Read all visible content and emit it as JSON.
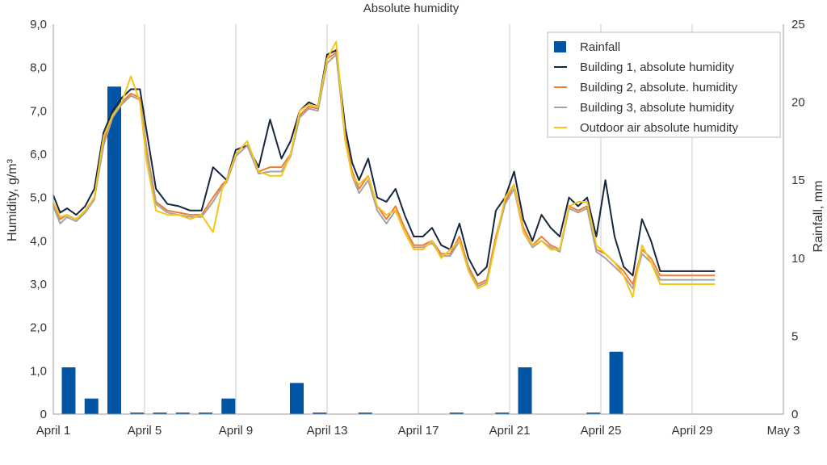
{
  "chart_data": {
    "type": "bar+line",
    "title": "Absolute humidity",
    "ylabel_left": "Humidity, g/m³",
    "ylabel_right": "Rainfall, mm",
    "ylim_left": [
      0,
      9
    ],
    "ylim_right": [
      0,
      25
    ],
    "xlim_days": [
      1,
      33
    ],
    "y_ticks_left": [
      "0",
      "1,0",
      "2,0",
      "3,0",
      "4,0",
      "5,0",
      "6,0",
      "7,0",
      "8,0",
      "9,0"
    ],
    "y_ticks_right": [
      "0",
      "5",
      "10",
      "15",
      "20",
      "25"
    ],
    "x_ticks": [
      {
        "day": 1,
        "label": "April 1"
      },
      {
        "day": 5,
        "label": "April 5"
      },
      {
        "day": 9,
        "label": "April 9"
      },
      {
        "day": 13,
        "label": "April 13"
      },
      {
        "day": 17,
        "label": "April 17"
      },
      {
        "day": 21,
        "label": "April 21"
      },
      {
        "day": 25,
        "label": "April 25"
      },
      {
        "day": 29,
        "label": "April 29"
      },
      {
        "day": 33,
        "label": "May 3"
      }
    ],
    "grid_vertical": true,
    "legend_position": "top-right",
    "rainfall": {
      "name": "Rainfall",
      "color": "#0055a5",
      "days": [
        1,
        2,
        3,
        4,
        5,
        6,
        7,
        8,
        9,
        10,
        11,
        12,
        13,
        14,
        15,
        16,
        17,
        18,
        19,
        20,
        21,
        22,
        23,
        24,
        25
      ],
      "values": [
        3.0,
        1.0,
        21.0,
        0.1,
        0.1,
        0.1,
        0.1,
        1.0,
        0,
        0,
        2.0,
        0.1,
        0,
        0.1,
        0,
        0,
        0,
        0.1,
        0,
        0.1,
        3.0,
        0,
        0,
        0.1,
        4.0
      ]
    },
    "series": [
      {
        "name": "Building 1, absolute humidity",
        "color": "#15263f",
        "days": [
          1.0,
          1.3,
          1.6,
          2.0,
          2.4,
          2.8,
          3.2,
          3.6,
          4.0,
          4.4,
          4.8,
          5.1,
          5.5,
          6.0,
          6.5,
          7.0,
          7.5,
          8.0,
          8.4,
          8.6,
          9.0,
          9.5,
          10.0,
          10.5,
          11.0,
          11.4,
          11.8,
          12.2,
          12.6,
          13.0,
          13.4,
          13.8,
          14.1,
          14.4,
          14.8,
          15.2,
          15.6,
          16.0,
          16.4,
          16.8,
          17.2,
          17.6,
          18.0,
          18.4,
          18.8,
          19.2,
          19.6,
          20.0,
          20.4,
          20.8,
          21.2,
          21.6,
          22.0,
          22.4,
          22.8,
          23.2,
          23.6,
          24.0,
          24.4,
          24.8,
          25.2,
          25.6,
          26.0,
          26.4,
          26.8,
          27.2,
          27.6,
          28.0,
          28.4,
          28.8,
          29.2,
          29.6,
          30.0
        ],
        "values": [
          5.05,
          4.65,
          4.75,
          4.6,
          4.8,
          5.2,
          6.5,
          7.0,
          7.3,
          7.5,
          7.5,
          6.5,
          5.2,
          4.85,
          4.8,
          4.7,
          4.7,
          5.7,
          5.5,
          5.4,
          6.1,
          6.2,
          5.7,
          6.8,
          5.9,
          6.3,
          7.0,
          7.2,
          7.1,
          8.3,
          8.4,
          6.6,
          5.8,
          5.4,
          5.9,
          5.0,
          4.9,
          5.2,
          4.6,
          4.1,
          4.1,
          4.3,
          3.9,
          3.8,
          4.4,
          3.6,
          3.2,
          3.4,
          4.7,
          5.0,
          5.6,
          4.5,
          4.0,
          4.6,
          4.3,
          4.1,
          5.0,
          4.8,
          5.0,
          4.1,
          5.4,
          4.1,
          3.4,
          3.2,
          4.5,
          4.0,
          3.3,
          3.3,
          3.3,
          3.3,
          3.3,
          3.3,
          3.3
        ]
      },
      {
        "name": "Building 2, absolute. humidity",
        "color": "#ef7d32",
        "days": [
          1.0,
          1.3,
          1.6,
          2.0,
          2.4,
          2.8,
          3.2,
          3.6,
          4.0,
          4.4,
          4.8,
          5.1,
          5.5,
          6.0,
          6.5,
          7.0,
          7.5,
          8.0,
          8.4,
          8.6,
          9.0,
          9.5,
          10.0,
          10.5,
          11.0,
          11.4,
          11.8,
          12.2,
          12.6,
          13.0,
          13.4,
          13.8,
          14.1,
          14.4,
          14.8,
          15.2,
          15.6,
          16.0,
          16.4,
          16.8,
          17.2,
          17.6,
          18.0,
          18.4,
          18.8,
          19.2,
          19.6,
          20.0,
          20.4,
          20.8,
          21.2,
          21.6,
          22.0,
          22.4,
          22.8,
          23.2,
          23.6,
          24.0,
          24.4,
          24.8,
          25.2,
          25.6,
          26.0,
          26.4,
          26.8,
          27.2,
          27.6,
          28.0,
          28.4,
          28.8,
          29.2,
          29.6,
          30.0
        ],
        "values": [
          4.85,
          4.5,
          4.6,
          4.5,
          4.7,
          5.0,
          6.3,
          6.9,
          7.2,
          7.4,
          7.3,
          6.1,
          4.9,
          4.7,
          4.65,
          4.6,
          4.6,
          5.0,
          5.3,
          5.4,
          6.0,
          6.3,
          5.6,
          5.7,
          5.7,
          6.0,
          6.9,
          7.1,
          7.05,
          8.2,
          8.35,
          6.4,
          5.6,
          5.2,
          5.5,
          4.8,
          4.5,
          4.8,
          4.3,
          3.9,
          3.9,
          4.0,
          3.7,
          3.7,
          4.1,
          3.4,
          3.0,
          3.1,
          4.1,
          4.9,
          5.3,
          4.3,
          3.9,
          4.1,
          3.9,
          3.8,
          4.8,
          4.7,
          4.8,
          3.8,
          3.7,
          3.5,
          3.3,
          3.0,
          3.8,
          3.6,
          3.2,
          3.2,
          3.2,
          3.2,
          3.2,
          3.2,
          3.2
        ]
      },
      {
        "name": "Building 3, absolute humidity",
        "color": "#a3a3a3",
        "days": [
          1.0,
          1.3,
          1.6,
          2.0,
          2.4,
          2.8,
          3.2,
          3.6,
          4.0,
          4.4,
          4.8,
          5.1,
          5.5,
          6.0,
          6.5,
          7.0,
          7.5,
          8.0,
          8.4,
          8.6,
          9.0,
          9.5,
          10.0,
          10.5,
          11.0,
          11.4,
          11.8,
          12.2,
          12.6,
          13.0,
          13.4,
          13.8,
          14.1,
          14.4,
          14.8,
          15.2,
          15.6,
          16.0,
          16.4,
          16.8,
          17.2,
          17.6,
          18.0,
          18.4,
          18.8,
          19.2,
          19.6,
          20.0,
          20.4,
          20.8,
          21.2,
          21.6,
          22.0,
          22.4,
          22.8,
          23.2,
          23.6,
          24.0,
          24.4,
          24.8,
          25.2,
          25.6,
          26.0,
          26.4,
          26.8,
          27.2,
          27.6,
          28.0,
          28.4,
          28.8,
          29.2,
          29.6,
          30.0
        ],
        "values": [
          4.8,
          4.4,
          4.55,
          4.45,
          4.65,
          4.95,
          6.2,
          6.85,
          7.15,
          7.35,
          7.25,
          6.0,
          4.85,
          4.65,
          4.6,
          4.55,
          4.55,
          4.9,
          5.25,
          5.35,
          5.95,
          6.2,
          5.55,
          5.6,
          5.6,
          5.95,
          6.85,
          7.05,
          7.0,
          8.1,
          8.3,
          6.3,
          5.5,
          5.1,
          5.4,
          4.7,
          4.4,
          4.7,
          4.2,
          3.85,
          3.85,
          3.95,
          3.65,
          3.65,
          4.0,
          3.35,
          2.95,
          3.05,
          4.0,
          4.85,
          5.2,
          4.2,
          3.85,
          4.0,
          3.85,
          3.75,
          4.75,
          4.65,
          4.75,
          3.75,
          3.6,
          3.4,
          3.2,
          2.9,
          3.7,
          3.5,
          3.1,
          3.1,
          3.1,
          3.1,
          3.1,
          3.1,
          3.1
        ]
      },
      {
        "name": "Outdoor air absolute humidity",
        "color": "#f5c518",
        "days": [
          1.0,
          1.3,
          1.6,
          2.0,
          2.4,
          2.8,
          3.2,
          3.6,
          4.0,
          4.4,
          4.8,
          5.1,
          5.5,
          6.0,
          6.5,
          7.0,
          7.5,
          8.0,
          8.4,
          8.6,
          9.0,
          9.5,
          10.0,
          10.5,
          11.0,
          11.4,
          11.8,
          12.2,
          12.6,
          13.0,
          13.4,
          13.8,
          14.1,
          14.4,
          14.8,
          15.2,
          15.6,
          16.0,
          16.4,
          16.8,
          17.2,
          17.6,
          18.0,
          18.4,
          18.8,
          19.2,
          19.6,
          20.0,
          20.4,
          20.8,
          21.2,
          21.6,
          22.0,
          22.4,
          22.8,
          23.2,
          23.6,
          24.0,
          24.4,
          24.8,
          25.2,
          25.6,
          26.0,
          26.4,
          26.8,
          27.2,
          27.6,
          28.0,
          28.4,
          28.8,
          29.2,
          29.6,
          30.0
        ],
        "values": [
          4.9,
          4.55,
          4.6,
          4.5,
          4.7,
          5.0,
          6.4,
          6.9,
          7.2,
          7.8,
          7.2,
          5.8,
          4.7,
          4.6,
          4.6,
          4.5,
          4.6,
          4.2,
          5.2,
          5.4,
          6.0,
          6.3,
          5.6,
          5.5,
          5.5,
          6.0,
          7.0,
          7.15,
          7.1,
          8.2,
          8.6,
          6.3,
          5.5,
          5.3,
          5.5,
          4.8,
          4.6,
          4.7,
          4.2,
          3.8,
          3.8,
          4.0,
          3.6,
          3.8,
          4.0,
          3.3,
          2.9,
          3.0,
          4.0,
          5.0,
          5.3,
          4.2,
          3.9,
          4.0,
          3.8,
          3.8,
          4.8,
          4.9,
          4.9,
          3.9,
          3.7,
          3.5,
          3.2,
          2.7,
          3.9,
          3.5,
          3.0,
          3.0,
          3.0,
          3.0,
          3.0,
          3.0,
          3.0
        ]
      }
    ]
  }
}
